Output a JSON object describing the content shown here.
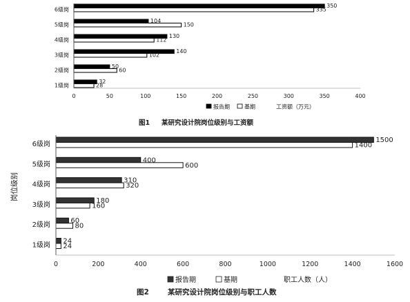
{
  "chart_data": [
    {
      "type": "bar",
      "orientation": "horizontal",
      "categories": [
        "1级岗",
        "2级岗",
        "3级岗",
        "4级岗",
        "5级岗",
        "6级岗"
      ],
      "series": [
        {
          "name": "报告期",
          "values": [
            32,
            50,
            140,
            130,
            104,
            350
          ],
          "color": "#000000"
        },
        {
          "name": "基期",
          "values": [
            28,
            60,
            102,
            112,
            150,
            335
          ],
          "color": "#ffffff"
        }
      ],
      "xlim": [
        0,
        400
      ],
      "xticks": [
        "0",
        "50",
        "100",
        "150",
        "200",
        "250",
        "300",
        "350",
        "400"
      ],
      "xlabel": "工资额（万元）",
      "ylabel": "",
      "caption_num": "图1",
      "caption_text": "某研究设计院岗位级别与工资额",
      "grid": false,
      "legend": "bottom"
    },
    {
      "type": "bar",
      "orientation": "horizontal",
      "categories": [
        "1级岗",
        "2级岗",
        "3级岗",
        "4级岗",
        "5级岗",
        "6级岗"
      ],
      "series": [
        {
          "name": "报告期",
          "values": [
            24,
            60,
            180,
            310,
            400,
            1500
          ],
          "color": "#333333"
        },
        {
          "name": "基期",
          "values": [
            24,
            80,
            160,
            320,
            600,
            1400
          ],
          "color": "#ffffff"
        }
      ],
      "xlim": [
        0,
        1600
      ],
      "xticks": [
        "0",
        "200",
        "400",
        "600",
        "800",
        "1000",
        "1200",
        "1400",
        "1600"
      ],
      "xlabel": "职工人数（人）",
      "ylabel": "岗位级别",
      "caption_num": "图2",
      "caption_text": "某研究设计院岗位级别与职工人数",
      "grid": false,
      "legend": "bottom"
    }
  ]
}
